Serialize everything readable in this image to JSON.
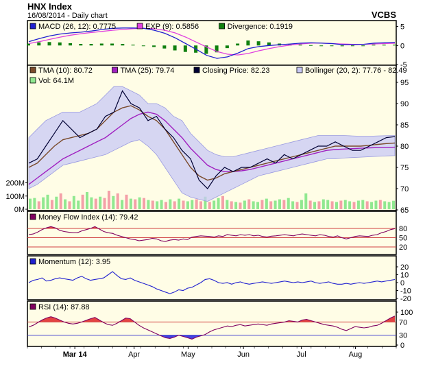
{
  "header": {
    "title": "HNX Index",
    "subtitle": "16/08/2014 - Daily chart",
    "broker": "VCBS"
  },
  "colors": {
    "plot_bg": "#fffde6",
    "band_fill": "#c8c8f5",
    "price_line": "#000033",
    "tma10": "#7a4a2a",
    "tma25": "#a020c0",
    "macd": "#2020d0",
    "exp": "#e040e0",
    "divergence": "#108010",
    "vol_up": "#90e890",
    "vol_down": "#f4a0a8",
    "mfi_line": "#800060",
    "momentum_line": "#2020d0",
    "rsi_line": "#800060",
    "overbought_fill": "#e03030",
    "oversold_fill": "#3030e0",
    "ref_line_red": "#d04040",
    "ref_line_blue": "#4040d0"
  },
  "legends": {
    "macd": [
      {
        "swatch": "#2020d0",
        "text": "MACD (26, 12): 0.7775"
      },
      {
        "swatch": "#e040e0",
        "text": "EXP (9): 0.5856"
      },
      {
        "swatch": "#108010",
        "text": "Divergence: 0.1919"
      }
    ],
    "price": [
      {
        "swatch": "#7a4a2a",
        "text": "TMA (10): 80.72"
      },
      {
        "swatch": "#a020c0",
        "text": "TMA (25): 79.74"
      },
      {
        "swatch": "#000033",
        "text": "Closing Price: 82.23"
      },
      {
        "swatch": "#c8c8f5",
        "text": "Bollinger (20, 2): 77.76 - 82.49"
      }
    ],
    "vol": [
      {
        "swatch": "#90e890",
        "text": "Vol: 64.1M"
      }
    ],
    "mfi": [
      {
        "swatch": "#800060",
        "text": "Money Flow Index (14): 79.42"
      }
    ],
    "momentum": [
      {
        "swatch": "#2020d0",
        "text": "Momentum (12): 3.95"
      }
    ],
    "rsi": [
      {
        "swatch": "#800060",
        "text": "RSI (14): 87.88"
      }
    ]
  },
  "chart_data": [
    {
      "type": "line",
      "name": "MACD",
      "ylim": [
        -5,
        6
      ],
      "y_ticks": [
        -5,
        0,
        5
      ],
      "series": [
        {
          "name": "MACD (26, 12)",
          "color": "#2020d0",
          "values": [
            1.0,
            1.8,
            2.5,
            3.0,
            3.3,
            3.5,
            3.8,
            4.2,
            4.5,
            4.6,
            4.6,
            4.5,
            4.0,
            3.2,
            2.0,
            0.5,
            -1.0,
            -2.6,
            -3.4,
            -3.0,
            -2.0,
            -0.8,
            -0.3,
            0.0,
            0.2,
            0.4,
            0.6,
            0.7,
            0.6,
            0.5,
            0.2,
            0.2,
            0.3,
            0.6,
            0.7,
            0.78
          ]
        },
        {
          "name": "EXP (9)",
          "color": "#e040e0",
          "values": [
            0.5,
            1.0,
            1.6,
            2.2,
            2.7,
            3.1,
            3.4,
            3.7,
            4.0,
            4.2,
            4.4,
            4.5,
            4.4,
            4.0,
            3.3,
            2.2,
            0.9,
            -0.4,
            -1.6,
            -2.3,
            -2.5,
            -2.1,
            -1.4,
            -0.8,
            -0.3,
            0.1,
            0.4,
            0.6,
            0.6,
            0.5,
            0.4,
            0.3,
            0.3,
            0.4,
            0.5,
            0.59
          ]
        },
        {
          "name": "Divergence",
          "color": "#108010",
          "values": [
            0.5,
            0.8,
            0.9,
            0.8,
            0.6,
            0.4,
            0.4,
            0.5,
            0.5,
            0.4,
            0.2,
            0.0,
            -0.4,
            -0.8,
            -1.3,
            -1.7,
            -1.9,
            -2.2,
            -1.8,
            -0.7,
            0.5,
            1.3,
            1.1,
            0.8,
            0.5,
            0.3,
            0.2,
            0.1,
            0.0,
            0.0,
            -0.2,
            -0.1,
            0.0,
            0.2,
            0.2,
            0.19
          ]
        }
      ]
    },
    {
      "type": "line",
      "name": "Price",
      "ylim": [
        65,
        95
      ],
      "y_ticks": [
        65,
        70,
        75,
        80,
        85,
        90,
        95
      ],
      "x_labels": [
        {
          "label": "Mar 14",
          "pos": 0.18
        },
        {
          "label": "Apr",
          "pos": 0.405
        },
        {
          "label": "May",
          "pos": 0.61
        },
        {
          "label": "Jun",
          "pos": 0.82
        },
        {
          "label": "Jul",
          "pos": 1.04
        },
        {
          "label": "Aug",
          "pos": 1.245
        }
      ],
      "series": [
        {
          "name": "Closing Price",
          "color": "#000033",
          "values": [
            76,
            77,
            80,
            83,
            86,
            84,
            82,
            83,
            84,
            87,
            88,
            93,
            90,
            89,
            86,
            87,
            84,
            82,
            79,
            77,
            72,
            70,
            73,
            75,
            74,
            75,
            75,
            76,
            77,
            76,
            78,
            77,
            78,
            79,
            80,
            80,
            81,
            80,
            79,
            79,
            80,
            81,
            82,
            82.23
          ]
        },
        {
          "name": "TMA (10)",
          "color": "#7a4a2a",
          "values": [
            75,
            76,
            78,
            80,
            81.5,
            82,
            82.5,
            83,
            84,
            86,
            88,
            89,
            89.5,
            88.5,
            87,
            86,
            84,
            81,
            78,
            75,
            73,
            72,
            72.5,
            73.5,
            74,
            74.5,
            75,
            75.5,
            76,
            76.5,
            77,
            77.5,
            78,
            78.5,
            79,
            79.5,
            80,
            80,
            80,
            80,
            80.2,
            80.4,
            80.6,
            80.72
          ]
        },
        {
          "name": "TMA (25)",
          "color": "#a020c0",
          "values": [
            71,
            72.5,
            74,
            75.5,
            77,
            78,
            79,
            80,
            81,
            82,
            83.5,
            85,
            86.5,
            87.5,
            88,
            87.5,
            86,
            84,
            82,
            79.5,
            77.5,
            75.5,
            74.5,
            74,
            74,
            74.2,
            74.5,
            75,
            75.5,
            76,
            76.5,
            77,
            77.5,
            78,
            78.5,
            79,
            79.2,
            79.3,
            79.4,
            79.5,
            79.6,
            79.65,
            79.7,
            79.74
          ]
        },
        {
          "name": "Bollinger upper",
          "color": "#c8c8f5",
          "values": [
            82,
            84,
            86,
            87,
            88,
            88,
            88,
            89,
            90,
            92,
            94,
            94,
            93,
            92,
            90,
            90,
            89,
            87,
            86,
            83,
            81,
            79,
            78,
            77.5,
            77.5,
            78,
            78.5,
            79,
            79.5,
            80,
            80.5,
            81,
            81.5,
            82,
            82.5,
            82.5,
            82.5,
            82.5,
            82.4,
            82.3,
            82.3,
            82.4,
            82.45,
            82.49
          ]
        },
        {
          "name": "Bollinger lower",
          "color": "#c8c8f5",
          "values": [
            70,
            71,
            72.5,
            74,
            75.5,
            76,
            76.5,
            77,
            77.5,
            78,
            79,
            80,
            81,
            81.5,
            80,
            78,
            75,
            72,
            69,
            68,
            67.5,
            67,
            68,
            69,
            70,
            71,
            72,
            73,
            73.5,
            74,
            74.5,
            75,
            75.5,
            76,
            76.5,
            77,
            77,
            77.2,
            77.3,
            77.4,
            77.5,
            77.6,
            77.7,
            77.76
          ]
        }
      ]
    },
    {
      "type": "bar",
      "name": "Volume",
      "ylim": [
        0,
        300
      ],
      "y_ticks_labels": [
        {
          "v": 0,
          "label": "0M"
        },
        {
          "v": 100,
          "label": "100M"
        },
        {
          "v": 200,
          "label": "200M"
        }
      ],
      "values": [
        80,
        85,
        60,
        90,
        110,
        70,
        95,
        120,
        75,
        60,
        100,
        65,
        110,
        130,
        90,
        80,
        95,
        85,
        140,
        100,
        120,
        70,
        110,
        80,
        75,
        90,
        85,
        70,
        65,
        60,
        70,
        55,
        75,
        60,
        80,
        65,
        60,
        70,
        75,
        60,
        95,
        55,
        65,
        85,
        100,
        70,
        60,
        55,
        50,
        65,
        75,
        60,
        55,
        70,
        80,
        60,
        65,
        75,
        70,
        85,
        60,
        55,
        70,
        120,
        65,
        55,
        60,
        75,
        70,
        60,
        55,
        65,
        70,
        60,
        55,
        65,
        70,
        60,
        55,
        65,
        70,
        60,
        55,
        64
      ],
      "up": [
        1,
        1,
        0,
        1,
        1,
        0,
        1,
        0,
        1,
        0,
        1,
        1,
        0,
        1,
        1,
        0,
        1,
        0,
        0,
        1,
        0,
        1,
        0,
        1,
        0,
        1,
        0,
        1,
        0,
        1,
        1,
        0,
        1,
        0,
        1,
        0,
        1,
        1,
        0,
        0,
        1,
        0,
        1,
        1,
        0,
        1,
        0,
        1,
        0,
        1,
        0,
        1,
        1,
        0,
        1,
        0,
        1,
        1,
        0,
        1,
        1,
        0,
        1,
        1,
        0,
        1,
        0,
        1,
        1,
        0,
        1,
        0,
        1,
        1,
        0,
        1,
        1,
        0,
        1,
        1,
        0,
        1,
        1,
        1
      ]
    },
    {
      "type": "line",
      "name": "Money Flow Index",
      "ylim": [
        0,
        100
      ],
      "ref_lines": [
        {
          "v": 80,
          "label": "80",
          "color": "#d04040"
        },
        {
          "v": 50,
          "label": "50",
          "color": "#d04040"
        },
        {
          "v": 20,
          "label": "20",
          "color": "#d04040"
        }
      ],
      "values": [
        60,
        62,
        68,
        76,
        82,
        86,
        82,
        74,
        70,
        68,
        66,
        66,
        72,
        76,
        80,
        86,
        78,
        70,
        66,
        64,
        58,
        54,
        50,
        46,
        44,
        40,
        42,
        44,
        48,
        46,
        40,
        38,
        42,
        44,
        42,
        46,
        44,
        52,
        54,
        56,
        55,
        54,
        52,
        56,
        54,
        60,
        58,
        56,
        60,
        58,
        60,
        56,
        58,
        54,
        52,
        55,
        56,
        58,
        60,
        58,
        56,
        60,
        62,
        60,
        58,
        56,
        60,
        58,
        54,
        52,
        56,
        50,
        46,
        50,
        54,
        56,
        55,
        54,
        58,
        60,
        66,
        70,
        76,
        79.42
      ]
    },
    {
      "type": "line",
      "name": "Momentum",
      "ylim": [
        -20,
        20
      ],
      "y_ticks": [
        -20,
        -10,
        0,
        10,
        20
      ],
      "values": [
        0,
        3,
        4,
        6,
        2,
        3,
        5,
        6,
        5,
        4,
        3,
        6,
        8,
        5,
        3,
        4,
        5,
        6,
        10,
        14,
        9,
        5,
        4,
        6,
        3,
        1,
        -1,
        -3,
        -5,
        -8,
        -10,
        -12,
        -14,
        -12,
        -9,
        -10,
        -7,
        -6,
        -3,
        0,
        4,
        5,
        3,
        0,
        -1,
        0,
        -2,
        0,
        1,
        -1,
        -2,
        -1,
        0,
        1,
        0,
        -1,
        0,
        1,
        2,
        1,
        0,
        1,
        0,
        1,
        2,
        0,
        -1,
        0,
        1,
        -1,
        -2,
        -2,
        -1,
        -2,
        -1,
        0,
        -1,
        0,
        1,
        2,
        1,
        2,
        3,
        3.95
      ]
    },
    {
      "type": "line",
      "name": "RSI",
      "ylim": [
        0,
        100
      ],
      "y_ticks": [
        0,
        30,
        70,
        100
      ],
      "ref_lines": [
        {
          "v": 70,
          "label": "70",
          "color": "#d04040"
        },
        {
          "v": 30,
          "label": "30",
          "color": "#4040d0"
        }
      ],
      "values": [
        55,
        60,
        68,
        76,
        82,
        86,
        82,
        76,
        70,
        66,
        64,
        66,
        70,
        75,
        80,
        84,
        76,
        68,
        62,
        60,
        66,
        74,
        82,
        80,
        70,
        60,
        52,
        46,
        40,
        34,
        28,
        22,
        20,
        24,
        30,
        26,
        22,
        18,
        24,
        28,
        32,
        40,
        46,
        50,
        54,
        58,
        56,
        60,
        62,
        58,
        60,
        62,
        64,
        62,
        60,
        64,
        66,
        68,
        70,
        74,
        72,
        70,
        76,
        78,
        74,
        70,
        66,
        62,
        60,
        58,
        54,
        48,
        44,
        50,
        56,
        54,
        52,
        54,
        58,
        60,
        66,
        74,
        82,
        87.88
      ]
    }
  ]
}
